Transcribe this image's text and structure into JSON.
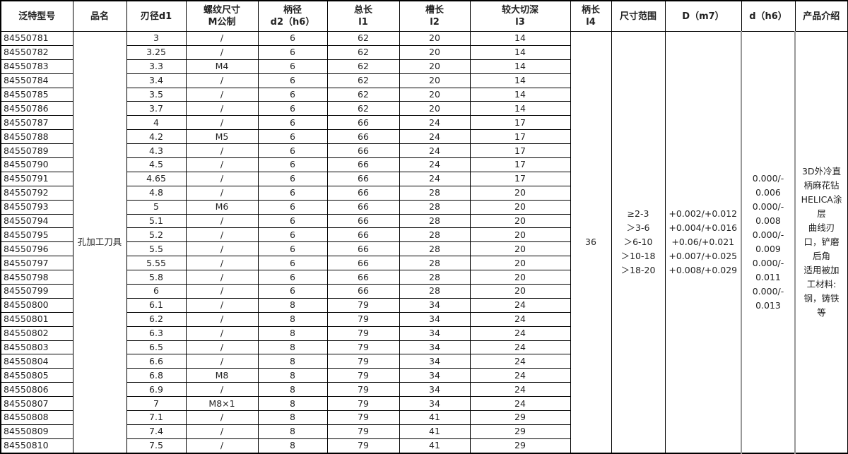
{
  "headers": [
    "泛特型号",
    "品名",
    "刃径d1",
    "螺纹尺寸\nM公制",
    "柄径\nd2（h6）",
    "总长\nl1",
    "槽长\nl2",
    "较大切深\nl3",
    "柄长\nl4",
    "尺寸范围",
    "D（m7）",
    "d（h6）",
    "产品介绍"
  ],
  "product_name": "孔加工刀具",
  "shank_length": "36",
  "size_range": [
    "≥2-3",
    "＞3-6",
    "＞6-10",
    "＞10-18",
    "＞18-20"
  ],
  "D_m7": [
    "+0.002/+0.012",
    "+0.004/+0.016",
    "+0.06/+0.021",
    "+0.007/+0.025",
    "+0.008/+0.029"
  ],
  "d_h6": [
    "0.000/-\n0.006",
    "0.000/-\n0.008",
    "0.000/-\n0.009",
    "0.000/-\n0.011",
    "0.000/-\n0.013"
  ],
  "intro": "3D外冷直\n柄麻花钻\nHELICA涂\n层\n曲线刃\n口，铲磨\n后角\n适用被加\n工材料:\n钢，铸铁\n等",
  "rows": [
    [
      "84550781",
      "3",
      "/",
      "6",
      "62",
      "20",
      "14"
    ],
    [
      "84550782",
      "3.25",
      "/",
      "6",
      "62",
      "20",
      "14"
    ],
    [
      "84550783",
      "3.3",
      "M4",
      "6",
      "62",
      "20",
      "14"
    ],
    [
      "84550784",
      "3.4",
      "/",
      "6",
      "62",
      "20",
      "14"
    ],
    [
      "84550785",
      "3.5",
      "/",
      "6",
      "62",
      "20",
      "14"
    ],
    [
      "84550786",
      "3.7",
      "/",
      "6",
      "62",
      "20",
      "14"
    ],
    [
      "84550787",
      "4",
      "/",
      "6",
      "66",
      "24",
      "17"
    ],
    [
      "84550788",
      "4.2",
      "M5",
      "6",
      "66",
      "24",
      "17"
    ],
    [
      "84550789",
      "4.3",
      "/",
      "6",
      "66",
      "24",
      "17"
    ],
    [
      "84550790",
      "4.5",
      "/",
      "6",
      "66",
      "24",
      "17"
    ],
    [
      "84550791",
      "4.65",
      "/",
      "6",
      "66",
      "24",
      "17"
    ],
    [
      "84550792",
      "4.8",
      "/",
      "6",
      "66",
      "28",
      "20"
    ],
    [
      "84550793",
      "5",
      "M6",
      "6",
      "66",
      "28",
      "20"
    ],
    [
      "84550794",
      "5.1",
      "/",
      "6",
      "66",
      "28",
      "20"
    ],
    [
      "84550795",
      "5.2",
      "/",
      "6",
      "66",
      "28",
      "20"
    ],
    [
      "84550796",
      "5.5",
      "/",
      "6",
      "66",
      "28",
      "20"
    ],
    [
      "84550797",
      "5.55",
      "/",
      "6",
      "66",
      "28",
      "20"
    ],
    [
      "84550798",
      "5.8",
      "/",
      "6",
      "66",
      "28",
      "20"
    ],
    [
      "84550799",
      "6",
      "/",
      "6",
      "66",
      "28",
      "20"
    ],
    [
      "84550800",
      "6.1",
      "/",
      "8",
      "79",
      "34",
      "24"
    ],
    [
      "84550801",
      "6.2",
      "/",
      "8",
      "79",
      "34",
      "24"
    ],
    [
      "84550802",
      "6.3",
      "/",
      "8",
      "79",
      "34",
      "24"
    ],
    [
      "84550803",
      "6.5",
      "/",
      "8",
      "79",
      "34",
      "24"
    ],
    [
      "84550804",
      "6.6",
      "/",
      "8",
      "79",
      "34",
      "24"
    ],
    [
      "84550805",
      "6.8",
      "M8",
      "8",
      "79",
      "34",
      "24"
    ],
    [
      "84550806",
      "6.9",
      "/",
      "8",
      "79",
      "34",
      "24"
    ],
    [
      "84550807",
      "7",
      "M8×1",
      "8",
      "79",
      "34",
      "24"
    ],
    [
      "84550808",
      "7.1",
      "/",
      "8",
      "79",
      "41",
      "29"
    ],
    [
      "84550809",
      "7.4",
      "/",
      "8",
      "79",
      "41",
      "29"
    ],
    [
      "84550810",
      "7.5",
      "/",
      "8",
      "79",
      "41",
      "29"
    ]
  ]
}
